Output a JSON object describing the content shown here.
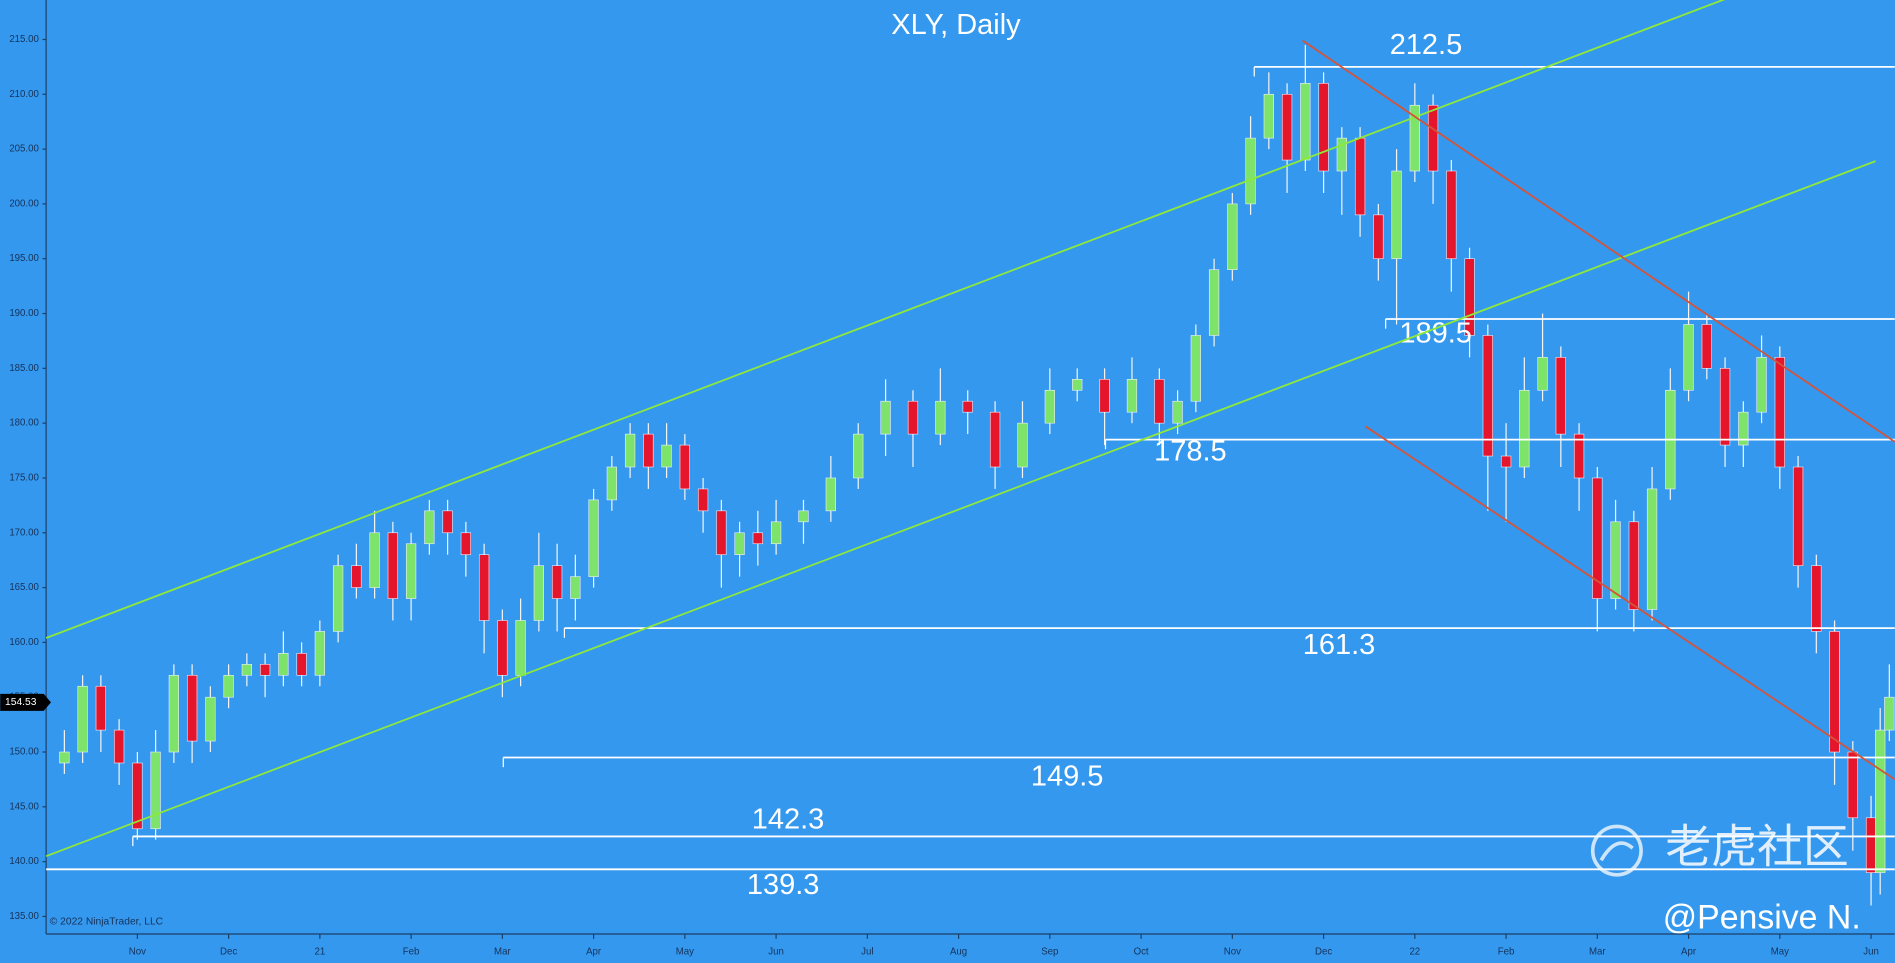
{
  "chart_data": {
    "type": "candlestick",
    "title": "XLY, Daily",
    "copyright": "© 2022 NinjaTrader, LLC",
    "watermark": "老虎社区",
    "signature": "@Pensive N.",
    "last_price": 154.53,
    "up_color": "#7ee36a",
    "down_color": "#e5152b",
    "level_color": "#ffffff",
    "xlim": [
      -1.0,
      19.26
    ],
    "ylim": [
      133.4,
      218.6
    ],
    "xticks": [
      {
        "value": 0,
        "label": "Nov"
      },
      {
        "value": 1,
        "label": "Dec"
      },
      {
        "value": 2,
        "label": "21"
      },
      {
        "value": 3,
        "label": "Feb"
      },
      {
        "value": 4,
        "label": "Mar"
      },
      {
        "value": 5,
        "label": "Apr"
      },
      {
        "value": 6,
        "label": "May"
      },
      {
        "value": 7,
        "label": "Jun"
      },
      {
        "value": 8,
        "label": "Jul"
      },
      {
        "value": 9,
        "label": "Aug"
      },
      {
        "value": 10,
        "label": "Sep"
      },
      {
        "value": 11,
        "label": "Oct"
      },
      {
        "value": 12,
        "label": "Nov"
      },
      {
        "value": 13,
        "label": "Dec"
      },
      {
        "value": 14,
        "label": "22"
      },
      {
        "value": 15,
        "label": "Feb"
      },
      {
        "value": 16,
        "label": "Mar"
      },
      {
        "value": 17,
        "label": "Apr"
      },
      {
        "value": 18,
        "label": "May"
      },
      {
        "value": 19,
        "label": "Jun"
      }
    ],
    "yticks": [
      {
        "value": 135,
        "label": "135.00"
      },
      {
        "value": 140,
        "label": "140.00"
      },
      {
        "value": 145,
        "label": "145.00"
      },
      {
        "value": 150,
        "label": "150.00"
      },
      {
        "value": 155,
        "label": "155.00"
      },
      {
        "value": 160,
        "label": "160.00"
      },
      {
        "value": 165,
        "label": "165.00"
      },
      {
        "value": 170,
        "label": "170.00"
      },
      {
        "value": 175,
        "label": "175.00"
      },
      {
        "value": 180,
        "label": "180.00"
      },
      {
        "value": 185,
        "label": "185.00"
      },
      {
        "value": 190,
        "label": "190.00"
      },
      {
        "value": 195,
        "label": "195.00"
      },
      {
        "value": 200,
        "label": "200.00"
      },
      {
        "value": 205,
        "label": "205.00"
      },
      {
        "value": 210,
        "label": "210.00"
      },
      {
        "value": 215,
        "label": "215.00"
      }
    ],
    "x": [
      -0.8,
      -0.6,
      -0.4,
      -0.2,
      0.0,
      0.2,
      0.4,
      0.6,
      0.8,
      1.0,
      1.2,
      1.4,
      1.6,
      1.8,
      2.0,
      2.2,
      2.4,
      2.6,
      2.8,
      3.0,
      3.2,
      3.4,
      3.6,
      3.8,
      4.0,
      4.2,
      4.4,
      4.6,
      4.8,
      5.0,
      5.2,
      5.4,
      5.6,
      5.8,
      6.0,
      6.2,
      6.4,
      6.6,
      6.8,
      7.0,
      7.3,
      7.6,
      7.9,
      8.2,
      8.5,
      8.8,
      9.1,
      9.4,
      9.7,
      10.0,
      10.3,
      10.6,
      10.9,
      11.2,
      11.4,
      11.6,
      11.8,
      12.0,
      12.2,
      12.4,
      12.6,
      12.8,
      13.0,
      13.2,
      13.4,
      13.6,
      13.8,
      14.0,
      14.2,
      14.4,
      14.6,
      14.8,
      15.0,
      15.2,
      15.4,
      15.6,
      15.8,
      16.0,
      16.2,
      16.4,
      16.6,
      16.8,
      17.0,
      17.2,
      17.4,
      17.6,
      17.8,
      18.0,
      18.2,
      18.4,
      18.6,
      18.8,
      19.0,
      19.1,
      19.2
    ],
    "open": [
      149,
      150,
      156,
      152,
      149,
      143,
      150,
      157,
      151,
      155,
      157,
      158,
      157,
      159,
      157,
      161,
      167,
      165,
      170,
      164,
      169,
      172,
      170,
      168,
      162,
      157,
      162,
      167,
      164,
      166,
      173,
      176,
      179,
      176,
      178,
      174,
      172,
      168,
      170,
      169,
      171,
      172,
      175,
      179,
      182,
      179,
      182,
      181,
      176,
      180,
      183,
      184,
      181,
      184,
      180,
      182,
      188,
      194,
      200,
      206,
      210,
      204,
      211,
      203,
      206,
      199,
      195,
      203,
      209,
      203,
      195,
      188,
      177,
      176,
      183,
      186,
      179,
      175,
      164,
      171,
      163,
      174,
      183,
      189,
      185,
      178,
      181,
      186,
      176,
      167,
      161,
      150,
      144,
      139,
      152
    ],
    "high": [
      152,
      157,
      157,
      153,
      150,
      152,
      158,
      158,
      156,
      158,
      159,
      159,
      161,
      160,
      162,
      168,
      169,
      172,
      171,
      170,
      173,
      173,
      171,
      169,
      163,
      164,
      170,
      169,
      168,
      174,
      177,
      180,
      180,
      180,
      179,
      175,
      173,
      171,
      172,
      173,
      173,
      177,
      180,
      184,
      183,
      185,
      183,
      182,
      182,
      185,
      185,
      185,
      186,
      185,
      183,
      189,
      195,
      201,
      208,
      212,
      211,
      214.5,
      212,
      207,
      207,
      200,
      205,
      211,
      210,
      204,
      196,
      189,
      180,
      186,
      190,
      187,
      180,
      176,
      173,
      172,
      176,
      185,
      192,
      190,
      186,
      182,
      188,
      187,
      177,
      168,
      162,
      151,
      146,
      154,
      158
    ],
    "low": [
      148,
      149,
      150,
      147,
      142,
      142,
      149,
      149,
      150,
      154,
      156,
      155,
      156,
      156,
      156,
      160,
      164,
      164,
      162,
      162,
      168,
      168,
      166,
      159,
      155,
      156,
      161,
      161,
      162,
      165,
      172,
      175,
      174,
      175,
      173,
      170,
      165,
      166,
      167,
      168,
      169,
      171,
      174,
      177,
      176,
      178,
      179,
      174,
      175,
      179,
      182,
      178,
      180,
      178,
      179,
      181,
      187,
      193,
      199,
      205,
      201,
      203,
      201,
      199,
      197,
      193,
      189,
      202,
      200,
      192,
      186,
      172,
      171,
      175,
      182,
      176,
      172,
      161,
      163,
      161,
      162,
      173,
      182,
      184,
      176,
      176,
      180,
      174,
      165,
      159,
      147,
      141,
      136,
      137,
      151
    ],
    "close": [
      150,
      156,
      152,
      149,
      143,
      150,
      157,
      151,
      155,
      157,
      158,
      157,
      159,
      157,
      161,
      167,
      165,
      170,
      164,
      169,
      172,
      170,
      168,
      162,
      157,
      162,
      167,
      164,
      166,
      173,
      176,
      179,
      176,
      178,
      174,
      172,
      168,
      170,
      169,
      171,
      172,
      175,
      179,
      182,
      179,
      182,
      181,
      176,
      180,
      183,
      184,
      181,
      184,
      180,
      182,
      188,
      194,
      200,
      206,
      210,
      204,
      211,
      203,
      206,
      199,
      195,
      203,
      209,
      203,
      195,
      188,
      177,
      176,
      183,
      186,
      179,
      175,
      164,
      171,
      163,
      174,
      183,
      189,
      185,
      178,
      181,
      186,
      176,
      167,
      161,
      150,
      144,
      139,
      152,
      155
    ],
    "levels": [
      {
        "value": 212.5,
        "label": "212.5",
        "x_start": 12.24
      },
      {
        "value": 189.5,
        "label": "189.5",
        "x_start": 13.68
      },
      {
        "value": 178.5,
        "label": "178.5",
        "x_start": 10.61
      },
      {
        "value": 161.3,
        "label": "161.3",
        "x_start": 4.68
      },
      {
        "value": 149.5,
        "label": "149.5",
        "x_start": 4.01
      },
      {
        "value": 142.3,
        "label": "142.3",
        "x_start": -0.05
      },
      {
        "value": 139.3,
        "label": "139.3",
        "x_start": -1.0
      }
    ],
    "trend_lines": [
      {
        "color": "#8ee83a",
        "x": [
          -1.0,
          17.5
        ],
        "y": [
          160.4,
          219.0
        ]
      },
      {
        "color": "#8ee83a",
        "x": [
          -1.0,
          19.05
        ],
        "y": [
          140.5,
          203.9
        ]
      },
      {
        "color": "#d4543a",
        "x": [
          12.77,
          19.26
        ],
        "y": [
          214.9,
          178.3
        ]
      },
      {
        "color": "#d4543a",
        "x": [
          13.46,
          19.26
        ],
        "y": [
          179.7,
          147.5
        ]
      }
    ]
  }
}
